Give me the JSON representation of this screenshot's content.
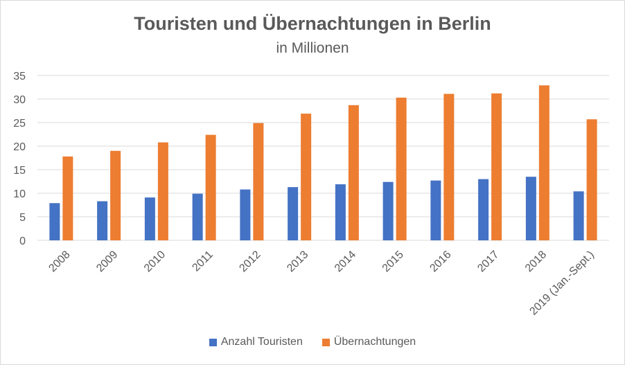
{
  "chart_data": {
    "type": "bar",
    "title": "Touristen und Übernachtungen in Berlin",
    "subtitle": "in Millionen",
    "xlabel": "",
    "ylabel": "",
    "ylim": [
      0,
      35
    ],
    "yticks": [
      "0",
      "5",
      "10",
      "15",
      "20",
      "25",
      "30",
      "35"
    ],
    "grid": true,
    "legend_position": "bottom",
    "categories": [
      "2008",
      "2009",
      "2010",
      "2011",
      "2012",
      "2013",
      "2014",
      "2015",
      "2016",
      "2017",
      "2018",
      "2019 (Jan.-Sept.)"
    ],
    "series": [
      {
        "name": "Anzahl Touristen",
        "color": "#4472c4",
        "values": [
          7.9,
          8.3,
          9.1,
          9.9,
          10.8,
          11.3,
          11.9,
          12.4,
          12.7,
          13.0,
          13.5,
          10.4
        ]
      },
      {
        "name": "Übernachtungen",
        "color": "#ed7d31",
        "values": [
          17.8,
          19.0,
          20.8,
          22.4,
          24.9,
          26.9,
          28.7,
          30.3,
          31.1,
          31.2,
          32.9,
          25.7
        ]
      }
    ]
  }
}
